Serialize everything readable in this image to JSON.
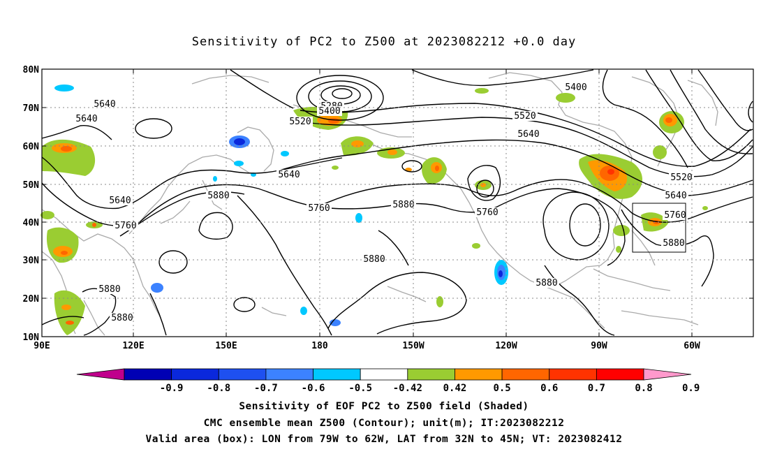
{
  "title": "Sensitivity of PC2 to Z500 at 2023082212 +0.0 day",
  "lat_labels": [
    "80N",
    "70N",
    "60N",
    "50N",
    "40N",
    "30N",
    "20N",
    "10N"
  ],
  "lon_labels": [
    "90E",
    "120E",
    "150E",
    "180",
    "150W",
    "120W",
    "90W",
    "60W"
  ],
  "contour_labels": [
    "5280",
    "5400",
    "5520",
    "5640",
    "5760",
    "5880"
  ],
  "colorbar": {
    "labels": [
      "-0.9",
      "-0.8",
      "-0.7",
      "-0.6",
      "-0.5",
      "-0.42",
      "0.42",
      "0.5",
      "0.6",
      "0.7",
      "0.8",
      "0.9"
    ],
    "colors": [
      "#c0008c",
      "#0000b4",
      "#0a28dc",
      "#1e50f0",
      "#3c82ff",
      "#00c8ff",
      "#ffffff",
      "#9acd32",
      "#ff9900",
      "#ff6600",
      "#ff3300",
      "#ff0000",
      "#ff99cc"
    ]
  },
  "captions": {
    "line1": "Sensitivity of EOF PC2 to Z500 field (Shaded)",
    "line2": "CMC ensemble mean Z500 (Contour); unit(m); IT:2023082212",
    "line3": "Valid area (box): LON from 79W to 62W, LAT from 32N to 45N; VT: 2023082412"
  },
  "valid_box": {
    "lon_west": "79W",
    "lon_east": "62W",
    "lat_south": "32N",
    "lat_north": "45N"
  }
}
